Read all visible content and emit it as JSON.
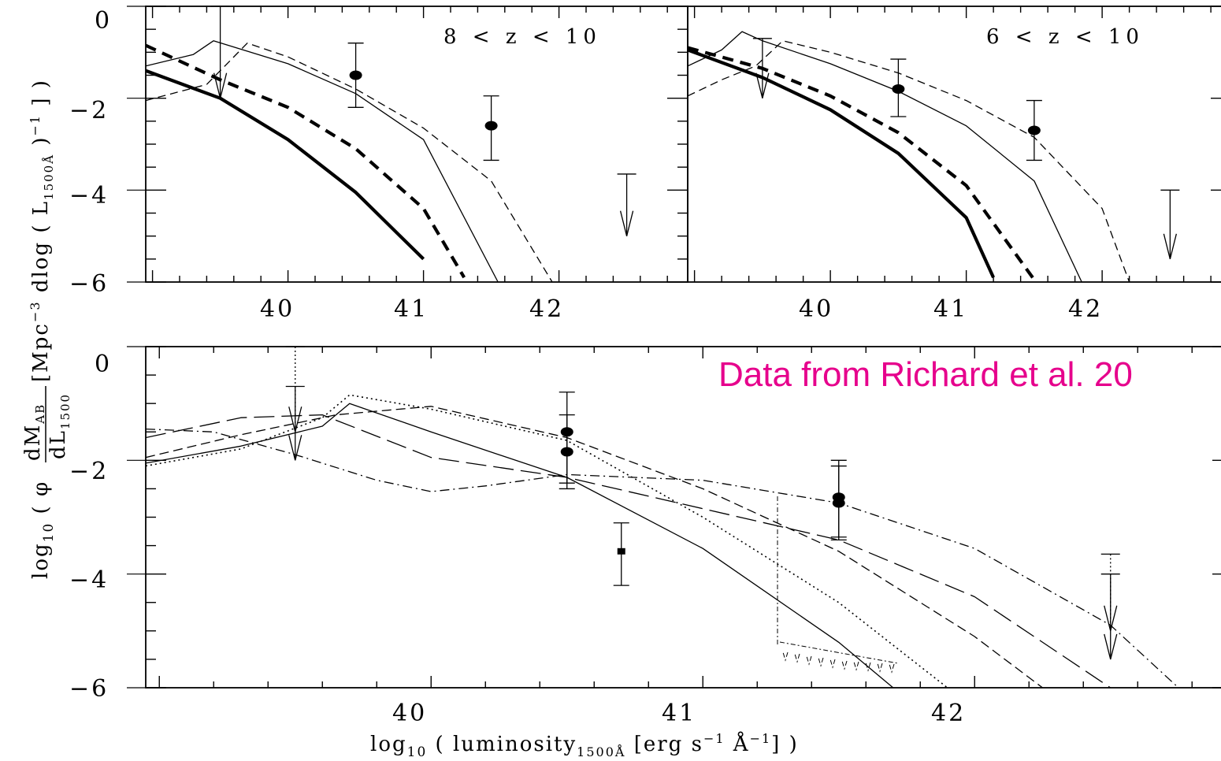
{
  "chart_data": [
    {
      "type": "line",
      "panel": "top-left",
      "annotation": "8 < z < 10",
      "xlim": [
        38.95,
        42.95
      ],
      "ylim": [
        -6,
        0
      ],
      "xticks": [
        "40",
        "41",
        "42"
      ],
      "yticks": [
        "0",
        "−2",
        "−4",
        "−6"
      ],
      "series": [
        {
          "style": "thick-solid",
          "x": [
            38.95,
            39.5,
            40.0,
            40.5,
            41.0
          ],
          "y": [
            -1.4,
            -2.0,
            -2.9,
            -4.05,
            -5.5
          ]
        },
        {
          "style": "thick-dashed",
          "x": [
            38.95,
            39.5,
            40.0,
            40.5,
            41.0,
            41.3
          ],
          "y": [
            -0.85,
            -1.6,
            -2.2,
            -3.1,
            -4.4,
            -5.9
          ]
        },
        {
          "style": "thin-solid",
          "x": [
            38.95,
            39.3,
            39.45,
            40.0,
            40.5,
            41.0,
            41.55
          ],
          "y": [
            -1.3,
            -1.05,
            -0.75,
            -1.25,
            -1.9,
            -2.9,
            -6.0
          ]
        },
        {
          "style": "thin-dashed",
          "x": [
            38.95,
            39.4,
            39.7,
            40.0,
            40.5,
            41.0,
            41.5,
            41.95
          ],
          "y": [
            -2.05,
            -1.7,
            -0.8,
            -1.1,
            -1.8,
            -2.65,
            -3.8,
            -6.0
          ]
        }
      ],
      "points": [
        {
          "x": 40.5,
          "y": -1.5,
          "ylo": -2.2,
          "yhi": -0.8
        },
        {
          "x": 41.5,
          "y": -2.6,
          "ylo": -3.35,
          "yhi": -1.95
        }
      ],
      "upper_limits": [
        {
          "x": 39.5,
          "from": 0.0,
          "to": -2.0
        },
        {
          "x": 42.5,
          "from": -3.65,
          "to": -5.0
        }
      ]
    },
    {
      "type": "line",
      "panel": "top-right",
      "annotation": "6 < z < 10",
      "xlim": [
        38.95,
        42.95
      ],
      "ylim": [
        -6,
        0
      ],
      "xticks": [
        "40",
        "41",
        "42"
      ],
      "series": [
        {
          "style": "thick-solid",
          "x": [
            38.95,
            39.5,
            40.0,
            40.5,
            41.0,
            41.2
          ],
          "y": [
            -0.95,
            -1.55,
            -2.25,
            -3.2,
            -4.6,
            -5.9
          ]
        },
        {
          "style": "thick-dashed",
          "x": [
            38.95,
            39.5,
            40.0,
            40.5,
            41.0,
            41.5
          ],
          "y": [
            -0.9,
            -1.35,
            -1.95,
            -2.75,
            -3.9,
            -5.95
          ]
        },
        {
          "style": "thin-solid",
          "x": [
            38.95,
            39.2,
            39.35,
            39.5,
            40.0,
            40.5,
            41.0,
            41.5,
            41.85
          ],
          "y": [
            -1.3,
            -0.95,
            -0.55,
            -0.75,
            -1.25,
            -1.85,
            -2.6,
            -3.8,
            -6.0
          ]
        },
        {
          "style": "thin-dashed",
          "x": [
            38.95,
            39.2,
            39.45,
            39.65,
            40.0,
            40.5,
            41.0,
            41.5,
            42.0,
            42.2
          ],
          "y": [
            -1.95,
            -1.6,
            -1.3,
            -0.75,
            -1.0,
            -1.45,
            -2.05,
            -2.85,
            -4.4,
            -6.0
          ]
        }
      ],
      "points": [
        {
          "x": 40.5,
          "y": -1.8,
          "ylo": -2.4,
          "yhi": -1.15
        },
        {
          "x": 41.5,
          "y": -2.7,
          "ylo": -3.35,
          "yhi": -2.05
        }
      ],
      "upper_limits": [
        {
          "x": 39.5,
          "from": -0.7,
          "to": -2.0
        },
        {
          "x": 42.5,
          "from": -4.0,
          "to": -5.5
        }
      ]
    },
    {
      "type": "line",
      "panel": "bottom",
      "annotation": "Data from Richard et al. 20",
      "annotation_color": "#e6008c",
      "xlim": [
        38.95,
        42.95
      ],
      "ylim": [
        -6,
        0
      ],
      "xticks": [
        "40",
        "41",
        "42"
      ],
      "yticks": [
        "0",
        "−2",
        "−4",
        "−6"
      ],
      "xlabel_parts": [
        "log",
        "10",
        " ( luminosity",
        "1500Å",
        " [erg s",
        "−1",
        " Å",
        "−1",
        "] )"
      ],
      "ylabel_bottom_parts": [
        "log",
        "10",
        " ( φ "
      ],
      "ylabel_fraction": {
        "num_base": "dM",
        "num_sub": "AB",
        "den_base": "dL",
        "den_sub": "1500"
      },
      "ylabel_top_parts": [
        " [Mpc",
        "−3",
        " dlog ( L",
        "1500Å",
        " )",
        "−1",
        " ] )"
      ],
      "series": [
        {
          "style": "solid",
          "x": [
            38.95,
            39.3,
            39.6,
            39.7,
            40.0,
            40.5,
            41.0,
            41.5,
            41.7
          ],
          "y": [
            -2.05,
            -1.75,
            -1.4,
            -1.0,
            -1.5,
            -2.3,
            -3.55,
            -5.2,
            -6.0
          ]
        },
        {
          "style": "dotted",
          "x": [
            38.95,
            39.3,
            39.6,
            39.7,
            40.0,
            40.5,
            41.0,
            41.5,
            41.9
          ],
          "y": [
            -2.1,
            -1.8,
            -1.25,
            -0.85,
            -1.1,
            -1.65,
            -3.0,
            -4.5,
            -6.0
          ]
        },
        {
          "style": "short-dashed",
          "x": [
            38.95,
            39.3,
            39.65,
            40.0,
            40.5,
            41.0,
            41.5,
            42.0,
            42.25
          ],
          "y": [
            -1.95,
            -1.55,
            -1.2,
            -1.05,
            -1.6,
            -2.5,
            -3.6,
            -5.1,
            -6.0
          ]
        },
        {
          "style": "long-dashed",
          "x": [
            38.95,
            39.3,
            39.6,
            40.0,
            40.5,
            41.0,
            41.5,
            42.0,
            42.5
          ],
          "y": [
            -1.6,
            -1.25,
            -1.2,
            -1.95,
            -2.3,
            -2.85,
            -3.4,
            -4.4,
            -6.0
          ]
        },
        {
          "style": "dash-dot",
          "x": [
            38.95,
            39.2,
            39.5,
            39.8,
            40.0,
            40.2,
            40.5,
            41.0,
            41.5,
            42.0,
            42.5,
            42.75
          ],
          "y": [
            -1.45,
            -1.5,
            -1.9,
            -2.35,
            -2.55,
            -2.45,
            -2.25,
            -2.35,
            -2.75,
            -3.55,
            -4.9,
            -6.0
          ]
        }
      ],
      "points": [
        {
          "x": 40.5,
          "y": -1.5,
          "ylo": -2.4,
          "yhi": -1.2
        },
        {
          "x": 40.5,
          "y": -1.85,
          "ylo": -2.5,
          "yhi": -0.8
        },
        {
          "x": 41.5,
          "y": -2.65,
          "ylo": -3.35,
          "yhi": -2.0
        },
        {
          "x": 41.5,
          "y": -2.75,
          "ylo": -3.4,
          "yhi": -2.1
        },
        {
          "x": 40.7,
          "y": -3.6,
          "ylo": -4.2,
          "yhi": -3.1,
          "marker": "square"
        }
      ],
      "upper_limits": [
        {
          "x": 39.5,
          "from": -0.7,
          "to": -2.0
        },
        {
          "x": 39.5,
          "from": 0.0,
          "to": -1.5,
          "style": "dotted"
        },
        {
          "x": 42.5,
          "from": -4.0,
          "to": -5.5
        },
        {
          "x": 42.5,
          "from": -3.65,
          "to": -5.0,
          "style": "dotted"
        }
      ]
    }
  ]
}
